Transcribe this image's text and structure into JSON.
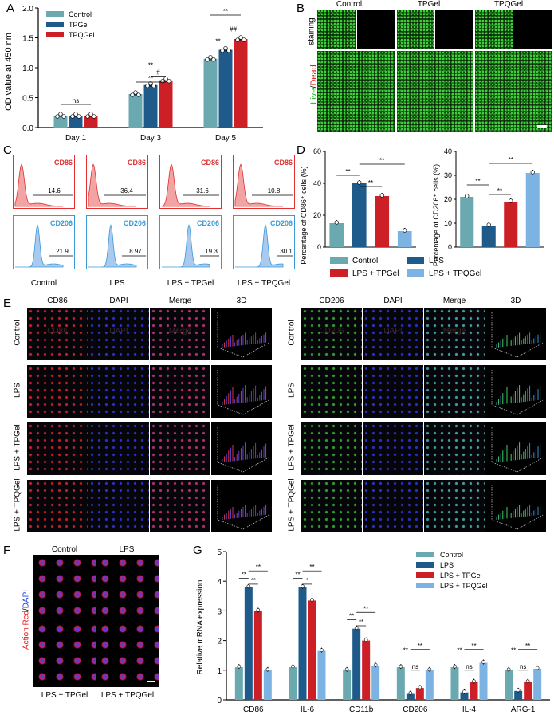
{
  "panels": {
    "A": "A",
    "B": "B",
    "C": "C",
    "D": "D",
    "E": "E",
    "F": "F",
    "G": "G"
  },
  "chart_data": [
    {
      "id": "A",
      "type": "bar",
      "ylabel": "OD value at 450 nm",
      "categories": [
        "Day 1",
        "Day 3",
        "Day 5"
      ],
      "ylim": [
        0,
        2.0
      ],
      "yticks": [
        "0.0",
        "0.5",
        "1.0",
        "1.5",
        "2.0"
      ],
      "series": [
        {
          "name": "Control",
          "color": "#6aa9b0",
          "values": [
            0.2,
            0.56,
            1.15
          ]
        },
        {
          "name": "TPGel",
          "color": "#1f5b8a",
          "values": [
            0.2,
            0.71,
            1.3
          ]
        },
        {
          "name": "TPQGel",
          "color": "#cc2026",
          "values": [
            0.2,
            0.79,
            1.48
          ]
        }
      ],
      "annotations": [
        "ns",
        "**",
        "**",
        "#",
        "**",
        "**",
        "##",
        "**"
      ]
    },
    {
      "id": "D1",
      "type": "bar",
      "ylabel": "Percentage of CD86⁺ cells (%)",
      "ylim": [
        0,
        60
      ],
      "yticks": [
        "0",
        "20",
        "40",
        "60"
      ],
      "values": [
        15,
        40,
        32,
        10
      ],
      "annotations": [
        "**",
        "**",
        "**"
      ]
    },
    {
      "id": "D2",
      "type": "bar",
      "ylabel": "Percentage of CD206⁺ cells (%)",
      "ylim": [
        0,
        40
      ],
      "yticks": [
        "0",
        "10",
        "20",
        "30",
        "40"
      ],
      "values": [
        21,
        9,
        19,
        31
      ],
      "annotations": [
        "**",
        "**",
        "**"
      ]
    },
    {
      "id": "G",
      "type": "bar",
      "ylabel": "Relative mRNA expression",
      "ylim": [
        0,
        5
      ],
      "yticks": [
        "0",
        "1",
        "2",
        "3",
        "4",
        "5"
      ],
      "categories": [
        "CD86",
        "IL-6",
        "CD11b",
        "CD206",
        "IL-4",
        "ARG-1"
      ],
      "series": [
        {
          "name": "Control",
          "color": "#6aa9b0",
          "values": [
            1.1,
            1.1,
            1.0,
            1.1,
            1.1,
            1.0
          ]
        },
        {
          "name": "LPS",
          "color": "#1f5b8a",
          "values": [
            3.8,
            3.8,
            2.4,
            0.2,
            0.25,
            0.3
          ]
        },
        {
          "name": "LPS + TPGel",
          "color": "#cc2026",
          "values": [
            3.0,
            3.35,
            2.0,
            0.4,
            0.6,
            0.6
          ]
        },
        {
          "name": "LPS + TPQGel",
          "color": "#7db3e3",
          "values": [
            1.0,
            1.65,
            1.15,
            1.0,
            1.25,
            1.05
          ]
        }
      ],
      "annotations": [
        "**",
        "**",
        "**",
        "**",
        "*",
        "**",
        "**",
        "**",
        "**",
        "**",
        "ns",
        "**",
        "**",
        "ns",
        "**",
        "**",
        "ns",
        "**"
      ]
    }
  ],
  "legend_D": [
    {
      "name": "Control",
      "color": "#6aa9b0"
    },
    {
      "name": "LPS",
      "color": "#1f5b8a"
    },
    {
      "name": "LPS + TPGel",
      "color": "#cc2026"
    },
    {
      "name": "LPS + TPQGel",
      "color": "#7db3e3"
    }
  ],
  "panelB": {
    "cols": [
      "Control",
      "TPGel",
      "TPQGel"
    ],
    "row_label_a": "staining",
    "row_label_live": "Live",
    "row_label_slash": "/",
    "row_label_dead": "Dead"
  },
  "panelC": {
    "cd86_label": "CD86",
    "cd206_label": "CD206",
    "cd86_values": [
      "14.6",
      "36.4",
      "31.6",
      "10.8"
    ],
    "cd206_values": [
      "21.9",
      "8.97",
      "19.3",
      "30.1"
    ],
    "groups": [
      "Control",
      "LPS",
      "LPS + TPGel",
      "LPS + TPQGel"
    ]
  },
  "panelE": {
    "left_cols": [
      "CD86",
      "DAPI",
      "Merge",
      "3D"
    ],
    "right_cols": [
      "CD206",
      "DAPI",
      "Merge",
      "3D"
    ],
    "rows": [
      "Control",
      "LPS",
      "LPS + TPGel",
      "LPS + TPQGel"
    ],
    "faint_left": [
      "CD86",
      "DAPI",
      "Merge"
    ],
    "faint_right": [
      "CD206",
      "DAPI",
      "Merge"
    ]
  },
  "panelF": {
    "cols": [
      "Control",
      "LPS"
    ],
    "bottom": [
      "LPS + TPGel",
      "LPS + TPQGel"
    ],
    "side_actin": "Action Red",
    "side_slash": "/",
    "side_dapi": "DAPI"
  }
}
